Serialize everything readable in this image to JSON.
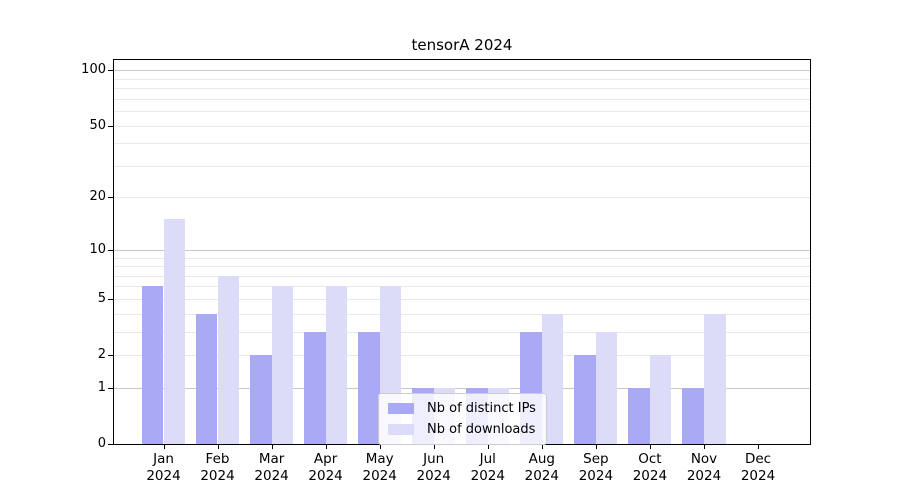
{
  "title": "tensorA 2024",
  "colors": {
    "distinct_ips": "#a9a9f5",
    "downloads": "#dcdcf9",
    "grid_major": "#c9c9c9",
    "grid_minor": "#e9e9e9",
    "spine": "#000000"
  },
  "y_axis": {
    "tick_labels": [
      "0",
      "1",
      "2",
      "5",
      "10",
      "20",
      "50",
      "100"
    ],
    "tick_values": [
      0,
      1,
      2,
      5,
      10,
      20,
      50,
      100
    ],
    "major_gridlines": [
      1,
      10,
      100
    ],
    "minor_gridlines": [
      2,
      3,
      4,
      5,
      6,
      7,
      8,
      9,
      20,
      30,
      40,
      50,
      60,
      70,
      80,
      90
    ]
  },
  "x_axis": {
    "months": [
      "Jan",
      "Feb",
      "Mar",
      "Apr",
      "May",
      "Jun",
      "Jul",
      "Aug",
      "Sep",
      "Oct",
      "Nov",
      "Dec"
    ],
    "year": "2024"
  },
  "legend": {
    "items": [
      {
        "label": "Nb of distinct IPs",
        "color": "#a9a9f5"
      },
      {
        "label": "Nb of downloads",
        "color": "#dcdcf9"
      }
    ]
  },
  "chart_data": {
    "type": "bar",
    "title": "tensorA 2024",
    "categories": [
      "Jan 2024",
      "Feb 2024",
      "Mar 2024",
      "Apr 2024",
      "May 2024",
      "Jun 2024",
      "Jul 2024",
      "Aug 2024",
      "Sep 2024",
      "Oct 2024",
      "Nov 2024",
      "Dec 2024"
    ],
    "series": [
      {
        "name": "Nb of distinct IPs",
        "color": "#a9a9f5",
        "values": [
          6,
          4,
          2,
          3,
          3,
          1,
          1,
          3,
          2,
          1,
          1,
          0
        ]
      },
      {
        "name": "Nb of downloads",
        "color": "#dcdcf9",
        "values": [
          15,
          7,
          6,
          6,
          6,
          1,
          1,
          4,
          3,
          2,
          4,
          0
        ]
      }
    ],
    "xlabel": "",
    "ylabel": "",
    "yscale": "log1p (symlog-like: 0,1,2,5,10,20,50,100 ticks)",
    "ylim": [
      0,
      115
    ],
    "grid": "both",
    "legend_position": "lower center"
  }
}
